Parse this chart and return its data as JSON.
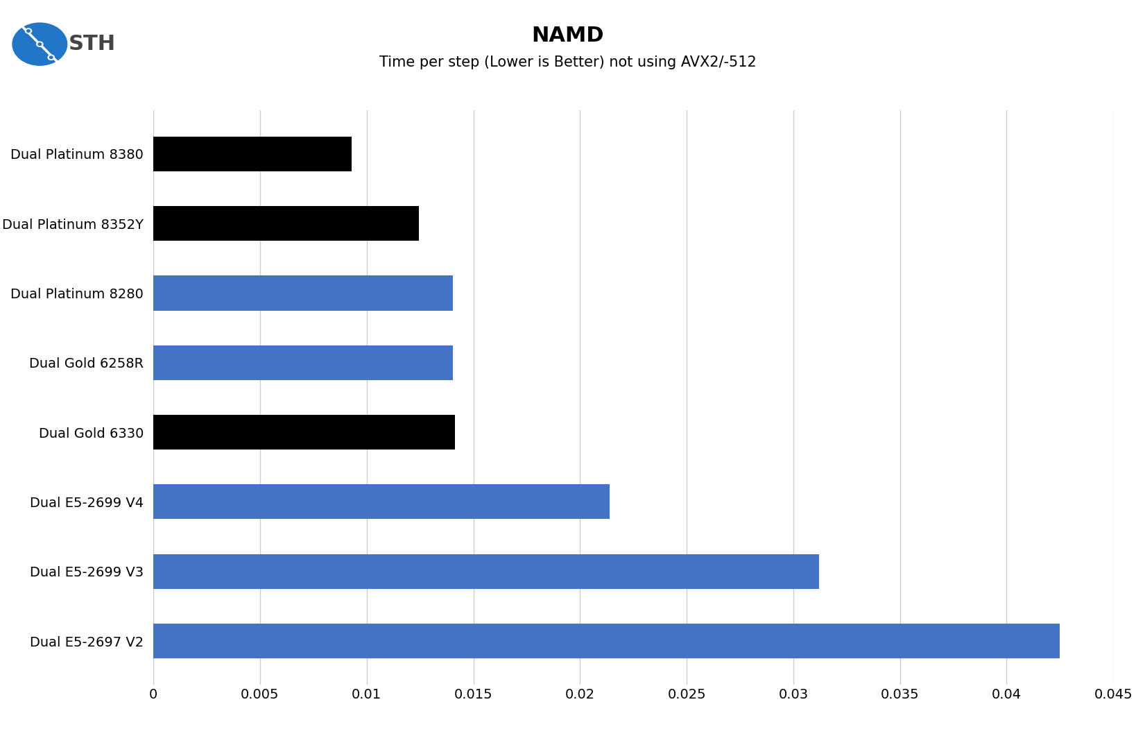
{
  "title": "NAMD",
  "subtitle": "Time per step (Lower is Better) not using AVX2/-512",
  "categories": [
    "Dual E5-2697 V2",
    "Dual E5-2699 V3",
    "Dual E5-2699 V4",
    "Dual Gold 6330",
    "Dual Gold 6258R",
    "Dual Platinum 8280",
    "Dual Platinum 8352Y",
    "Dual Platinum 8380"
  ],
  "values": [
    0.0425,
    0.0312,
    0.0214,
    0.01415,
    0.01405,
    0.01405,
    0.01245,
    0.0093
  ],
  "bar_colors": [
    "#4472C4",
    "#4472C4",
    "#4472C4",
    "#000000",
    "#4472C4",
    "#4472C4",
    "#000000",
    "#000000"
  ],
  "xlim": [
    0,
    0.045
  ],
  "xticks": [
    0,
    0.005,
    0.01,
    0.015,
    0.02,
    0.025,
    0.03,
    0.035,
    0.04,
    0.045
  ],
  "background_color": "#ffffff",
  "grid_color": "#cccccc",
  "title_fontsize": 22,
  "subtitle_fontsize": 15,
  "tick_fontsize": 14,
  "label_fontsize": 14
}
